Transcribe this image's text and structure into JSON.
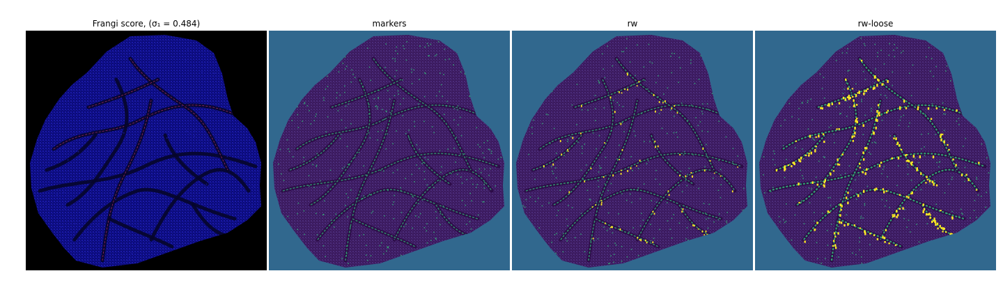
{
  "figure": {
    "panels": [
      {
        "id": "frangi",
        "title": "Frangi score, (σ₁ = 0.484)",
        "background": "#000000",
        "fill": "#0b0b7a",
        "texture": "#1a1aa8",
        "vessel": "#05052a",
        "highlight": "#c0306a"
      },
      {
        "id": "markers",
        "title": "markers",
        "background": "#31688e",
        "fill": "#3b1a5e",
        "texture": "#4b2c7a",
        "vessel": "#2b0a45",
        "highlight": "#35b779"
      },
      {
        "id": "rw",
        "title": "rw",
        "background": "#31688e",
        "fill": "#3b1a5e",
        "texture": "#4b2c7a",
        "vessel": "#2b0a45",
        "highlight": "#35b779",
        "accent": "#fde725"
      },
      {
        "id": "rw-loose",
        "title": "rw-loose",
        "background": "#31688e",
        "fill": "#3b1a5e",
        "texture": "#4b2c7a",
        "vessel": "#2b0a45",
        "highlight": "#35b779",
        "accent": "#fde725"
      }
    ]
  }
}
